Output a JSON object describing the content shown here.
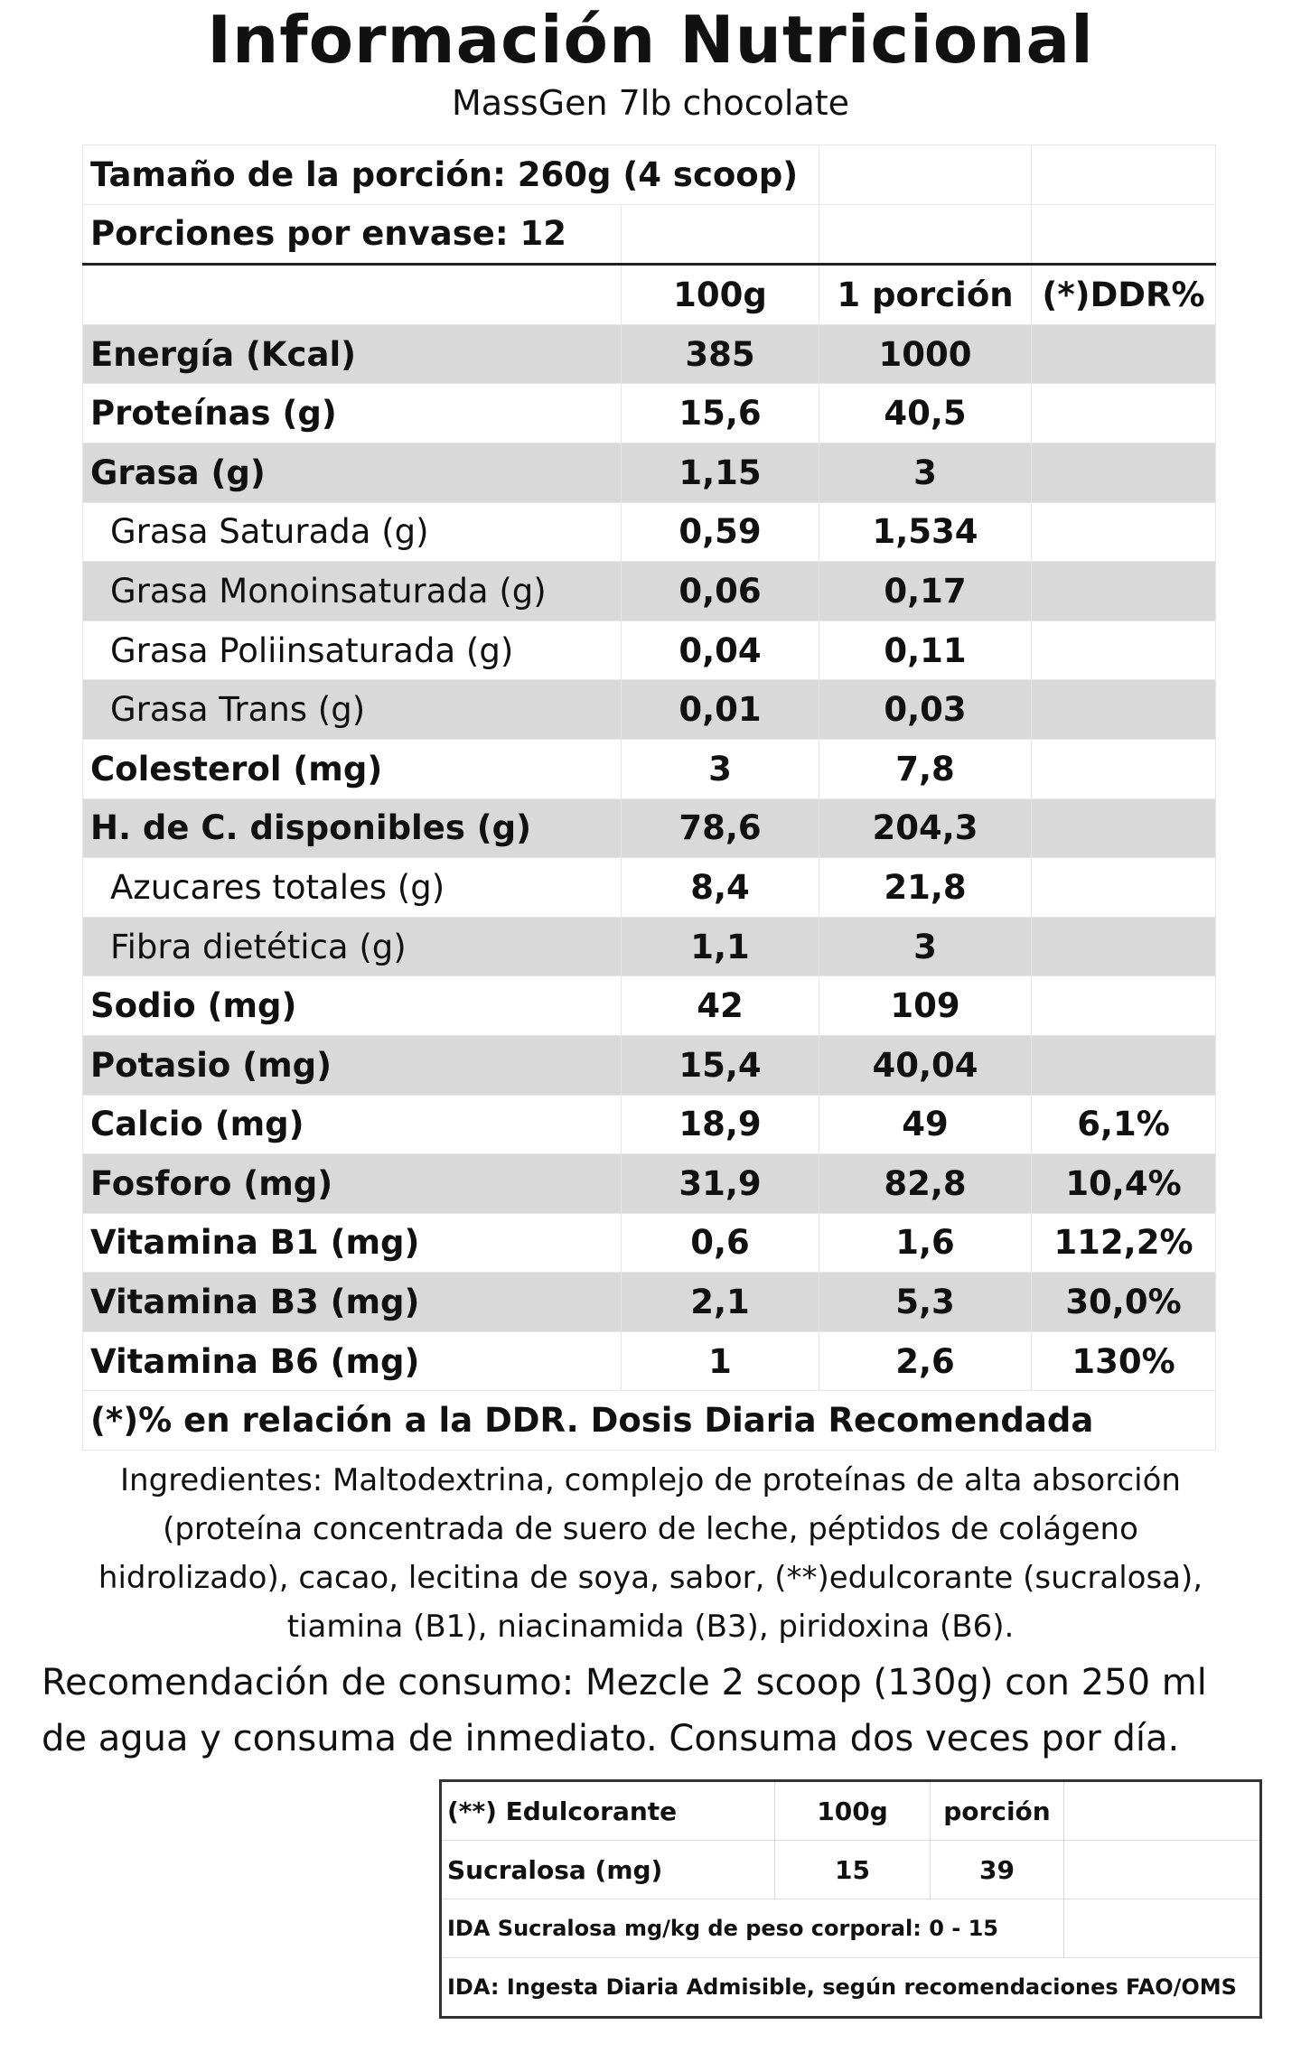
{
  "header": {
    "title": "Información Nutricional",
    "subtitle": "MassGen 7lb chocolate"
  },
  "serving": {
    "size": "Tamaño de la porción: 260g (4 scoop)",
    "per_container": "Porciones por envase: 12"
  },
  "columns": {
    "c1": "",
    "c2": "100g",
    "c3": "1 porción",
    "c4": "(*)DDR%"
  },
  "rows": [
    {
      "label": "Energía (Kcal)",
      "per100": "385",
      "portion": "1000",
      "ddr": ""
    },
    {
      "label": "Proteínas (g)",
      "per100": "15,6",
      "portion": "40,5",
      "ddr": ""
    },
    {
      "label": "Grasa (g)",
      "per100": "1,15",
      "portion": "3",
      "ddr": ""
    },
    {
      "label": "Grasa Saturada (g)",
      "per100": "0,59",
      "portion": "1,534",
      "ddr": ""
    },
    {
      "label": "Grasa Monoinsaturada (g)",
      "per100": "0,06",
      "portion": "0,17",
      "ddr": ""
    },
    {
      "label": "Grasa Poliinsaturada (g)",
      "per100": "0,04",
      "portion": "0,11",
      "ddr": ""
    },
    {
      "label": "Grasa Trans (g)",
      "per100": "0,01",
      "portion": "0,03",
      "ddr": ""
    },
    {
      "label": "Colesterol (mg)",
      "per100": "3",
      "portion": "7,8",
      "ddr": ""
    },
    {
      "label": "H. de C. disponibles (g)",
      "per100": "78,6",
      "portion": "204,3",
      "ddr": ""
    },
    {
      "label": "Azucares totales (g)",
      "per100": "8,4",
      "portion": "21,8",
      "ddr": ""
    },
    {
      "label": "Fibra dietética (g)",
      "per100": "1,1",
      "portion": "3",
      "ddr": ""
    },
    {
      "label": "Sodio (mg)",
      "per100": "42",
      "portion": "109",
      "ddr": ""
    },
    {
      "label": "Potasio (mg)",
      "per100": "15,4",
      "portion": "40,04",
      "ddr": ""
    },
    {
      "label": "Calcio (mg)",
      "per100": "18,9",
      "portion": "49",
      "ddr": "6,1%"
    },
    {
      "label": "Fosforo (mg)",
      "per100": "31,9",
      "portion": "82,8",
      "ddr": "10,4%"
    },
    {
      "label": "Vitamina B1 (mg)",
      "per100": "0,6",
      "portion": "1,6",
      "ddr": "112,2%"
    },
    {
      "label": "Vitamina B3 (mg)",
      "per100": "2,1",
      "portion": "5,3",
      "ddr": "30,0%"
    },
    {
      "label": "Vitamina B6 (mg)",
      "per100": "1",
      "portion": "2,6",
      "ddr": "130%"
    }
  ],
  "footnote": "(*)% en relación a la DDR. Dosis Diaria Recomendada",
  "ingredients": [
    "Ingredientes: Maltodextrina, complejo de proteínas de alta absorción",
    "(proteína concentrada de suero de leche,  péptidos de colágeno",
    "hidrolizado), cacao, lecitina de soya, sabor, (**)edulcorante (sucralosa),",
    "tiamina (B1), niacinamida (B3), piridoxina (B6)."
  ],
  "recommendation": [
    "Recomendación de consumo:  Mezcle 2 scoop (130g) con 250 ml",
    "de agua y consuma de inmediato. Consuma dos veces por día."
  ],
  "sweetener": {
    "header": {
      "label": "(**) Edulcorante",
      "per100": "100g",
      "portion": "porción"
    },
    "row": {
      "label": "Sucralosa (mg)",
      "per100": "15",
      "portion": "39"
    },
    "ida": "IDA Sucralosa mg/kg de peso corporal: 0 - 15",
    "ida_def": "IDA: Ingesta Diaria Admisible, según  recomendaciones FAO/OMS"
  }
}
